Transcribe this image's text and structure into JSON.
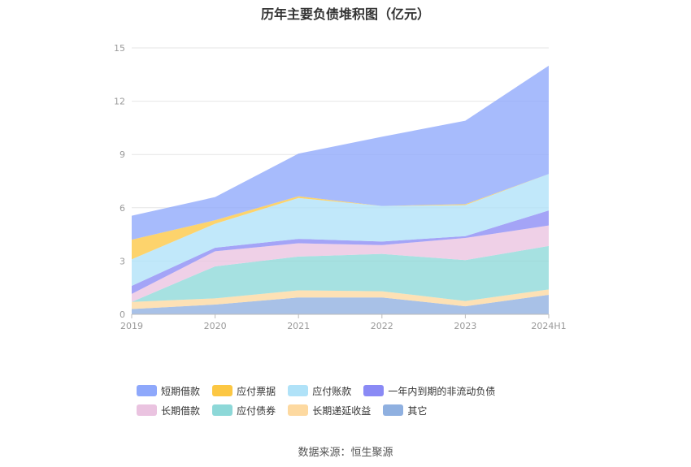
{
  "chart_data": {
    "type": "area",
    "stacked": true,
    "title": "历年主要负债堆积图（亿元）",
    "x": [
      "2019",
      "2020",
      "2021",
      "2022",
      "2023",
      "2024H1"
    ],
    "ylim": [
      0,
      15
    ],
    "yticks": [
      0,
      3,
      6,
      9,
      12,
      15
    ],
    "grid": true,
    "legend_position": "bottom",
    "series": [
      {
        "name": "其它",
        "color": "#8fb0e0",
        "values": [
          0.3,
          0.55,
          0.95,
          0.95,
          0.45,
          1.1
        ]
      },
      {
        "name": "长期递延收益",
        "color": "#fdd9a0",
        "values": [
          0.4,
          0.35,
          0.4,
          0.35,
          0.3,
          0.3
        ]
      },
      {
        "name": "应付债券",
        "color": "#8dd8d8",
        "values": [
          0.0,
          1.8,
          1.9,
          2.1,
          2.3,
          2.45
        ]
      },
      {
        "name": "长期借款",
        "color": "#eac3e0",
        "values": [
          0.45,
          0.85,
          0.75,
          0.5,
          1.25,
          1.15
        ]
      },
      {
        "name": "一年内到期的非流动负债",
        "color": "#8a8af5",
        "values": [
          0.45,
          0.2,
          0.25,
          0.2,
          0.1,
          0.85
        ]
      },
      {
        "name": "应付账款",
        "color": "#b0e2f8",
        "values": [
          1.5,
          1.35,
          2.3,
          2.0,
          1.75,
          2.05
        ]
      },
      {
        "name": "应付票据",
        "color": "#fcc743",
        "values": [
          1.1,
          0.2,
          0.1,
          0.0,
          0.05,
          0.0
        ]
      },
      {
        "name": "短期借款",
        "color": "#8ea8fb",
        "values": [
          1.35,
          1.3,
          2.4,
          3.9,
          4.7,
          6.1
        ]
      }
    ]
  },
  "legend": {
    "items": [
      {
        "name": "短期借款",
        "color": "#8ea8fb"
      },
      {
        "name": "应付票据",
        "color": "#fcc743"
      },
      {
        "name": "应付账款",
        "color": "#b0e2f8"
      },
      {
        "name": "一年内到期的非流动负债",
        "color": "#8a8af5"
      },
      {
        "name": "长期借款",
        "color": "#eac3e0"
      },
      {
        "name": "应付债券",
        "color": "#8dd8d8"
      },
      {
        "name": "长期递延收益",
        "color": "#fdd9a0"
      },
      {
        "name": "其它",
        "color": "#8fb0e0"
      }
    ]
  },
  "source": "数据来源：恒生聚源"
}
